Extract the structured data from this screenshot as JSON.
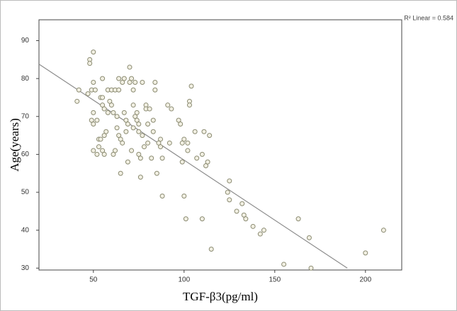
{
  "chart_data": {
    "type": "scatter",
    "x_label": "TGF-β3(pg/ml)",
    "y_label": "Age(years)",
    "annotation": "R² Linear = 0.584",
    "xlim": [
      20,
      220
    ],
    "xticks": [
      50,
      100,
      150,
      200
    ],
    "ylim": [
      29.5,
      95.5
    ],
    "yticks": [
      30,
      40,
      50,
      60,
      70,
      80,
      90
    ],
    "grid": false,
    "color": "#f1efe2",
    "edge_color": "#8b8b72",
    "series": [
      {
        "x": [
          41,
          42,
          47,
          48,
          48,
          49,
          50,
          50,
          49,
          50,
          50,
          50,
          51,
          52,
          52,
          53,
          53,
          54,
          54,
          55,
          55,
          55,
          55,
          56,
          56,
          56,
          57,
          58,
          58,
          59,
          60,
          60,
          61,
          61,
          62,
          62,
          63,
          63,
          64,
          64,
          64,
          65,
          65,
          66,
          66,
          67,
          67,
          68,
          68,
          69,
          69,
          70,
          70,
          71,
          71,
          72,
          72,
          72,
          73,
          73,
          74,
          74,
          75,
          75,
          75,
          76,
          76,
          77,
          77,
          78,
          79,
          79,
          80,
          80,
          81,
          82,
          83,
          83,
          84,
          84,
          85,
          86,
          87,
          87,
          88,
          88,
          91,
          92,
          93,
          97,
          98,
          99,
          99,
          100,
          100,
          101,
          102,
          102,
          103,
          103,
          104,
          106,
          107,
          110,
          110,
          111,
          112,
          113,
          114,
          115,
          124,
          125,
          125,
          129,
          132,
          133,
          134,
          138,
          142,
          144,
          155,
          163,
          169,
          170,
          200,
          210
        ],
        "values": [
          74,
          77,
          76,
          85,
          84,
          77,
          87,
          79,
          69,
          68,
          71,
          61,
          77,
          60,
          69,
          64,
          62,
          75,
          64,
          80,
          75,
          73,
          61,
          65,
          60,
          72,
          66,
          71,
          77,
          74,
          73,
          77,
          60,
          71,
          61,
          77,
          70,
          67,
          77,
          80,
          65,
          55,
          64,
          79,
          63,
          80,
          71,
          69,
          66,
          58,
          68,
          83,
          79,
          61,
          80,
          77,
          73,
          67,
          79,
          70,
          71,
          69,
          66,
          60,
          68,
          59,
          54,
          79,
          65,
          62,
          73,
          72,
          63,
          68,
          72,
          59,
          69,
          66,
          77,
          79,
          55,
          63,
          64,
          62,
          59,
          49,
          73,
          63,
          72,
          69,
          68,
          58,
          63,
          64,
          49,
          43,
          63,
          61,
          74,
          73,
          78,
          66,
          59,
          60,
          43,
          66,
          57,
          58,
          65,
          35,
          50,
          53,
          48,
          45,
          47,
          44,
          43,
          41,
          39,
          40,
          31,
          43,
          38,
          30,
          34,
          40
        ]
      }
    ],
    "trendline": {
      "color": "#8c8c8c",
      "x": [
        20,
        190
      ],
      "values": [
        83.8,
        30
      ]
    }
  }
}
